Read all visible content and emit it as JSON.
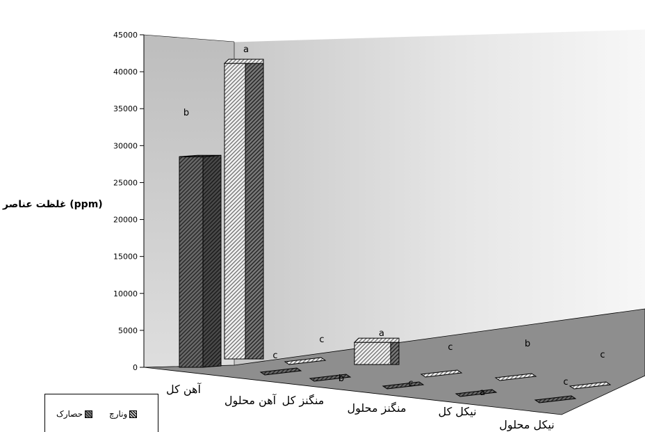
{
  "chart_data": {
    "type": "bar",
    "ylabel": "غلظت عناصر (ppm)",
    "ylim": [
      0,
      45000
    ],
    "yticks": [
      "0",
      "5000",
      "10000",
      "15000",
      "20000",
      "25000",
      "30000",
      "35000",
      "40000",
      "45000"
    ],
    "categories": [
      "آهن کل",
      "آهن محلول",
      "منگنز کل",
      "منگنز محلول",
      "نیکل کل",
      "نیکل محلول"
    ],
    "series": [
      {
        "name": "حصارک",
        "values": [
          28500,
          250,
          550,
          250,
          200,
          250
        ],
        "letters": [
          "b",
          "c",
          "b",
          "c",
          "a",
          "c"
        ]
      },
      {
        "name": "ونارچ",
        "values": [
          40000,
          300,
          3000,
          300,
          350,
          300
        ],
        "letters": [
          "a",
          "c",
          "a",
          "c",
          "b",
          "c"
        ]
      }
    ],
    "legend_position": "bottom-left",
    "colors": {
      "series1": "#5a5a5a",
      "series2": "#dcdcdc",
      "floor": "#8c8c8c",
      "back_wall": "#e2e2e2"
    }
  }
}
